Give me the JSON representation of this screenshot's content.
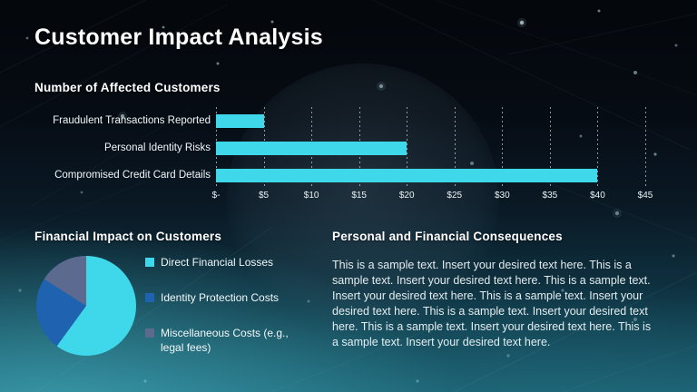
{
  "slide": {
    "title": "Customer Impact Analysis"
  },
  "bar_section": {
    "heading": "Number of Affected Customers"
  },
  "pie_section": {
    "heading": "Financial Impact on Customers"
  },
  "text_section": {
    "heading": "Personal and Financial Consequences",
    "body": "This is a sample text. Insert your desired text here. This is a sample text. Insert your desired text here. This is a sample text. Insert your desired text here. This is a sample text. Insert your desired text here. This is a sample text. Insert your desired text here. This is a sample text. Insert your desired text here. This is a sample text. Insert your desired text here."
  },
  "chart_data": [
    {
      "type": "bar",
      "orientation": "horizontal",
      "title": "Number of Affected Customers",
      "categories": [
        "Fraudulent Transactions Reported",
        "Personal Identity Risks",
        "Compromised Credit Card Details"
      ],
      "values": [
        5,
        20,
        40
      ],
      "xlim": [
        0,
        45
      ],
      "tick_step": 5,
      "tick_labels": [
        "$-",
        "$5",
        "$10",
        "$15",
        "$20",
        "$25",
        "$30",
        "$35",
        "$40",
        "$45"
      ],
      "bar_color": "#3fd8ea",
      "grid": "dashed-vertical-gridlines",
      "legend_position": "none"
    },
    {
      "type": "pie",
      "title": "Financial Impact on Customers",
      "labels": [
        "Direct Financial Losses",
        "Identity Protection Costs",
        "Miscellaneous Costs (e.g., legal fees)"
      ],
      "values": [
        60,
        24,
        16
      ],
      "colors": [
        "#3fd8ea",
        "#1f63b0",
        "#5d6a90"
      ],
      "start_angle_deg": 0,
      "direction": "clockwise",
      "legend_position": "right"
    }
  ]
}
